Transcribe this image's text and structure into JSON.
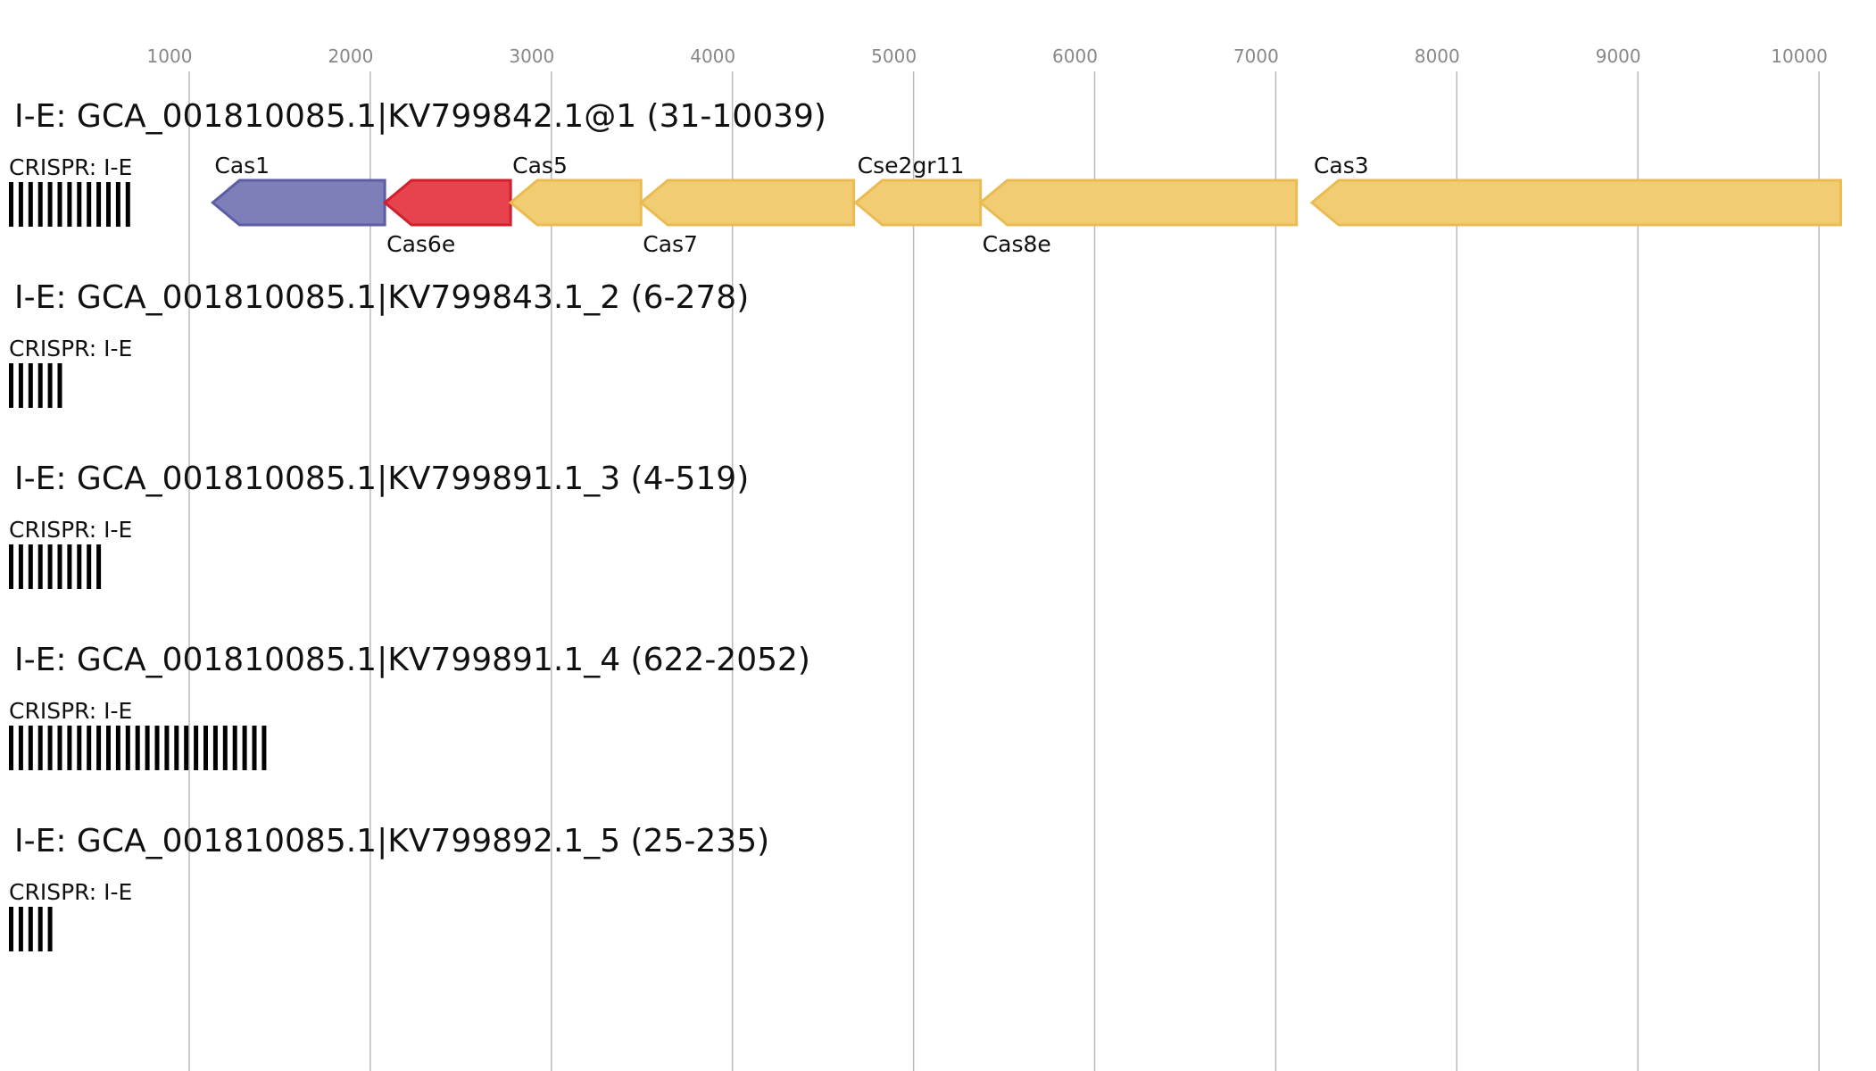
{
  "axis": {
    "ticks": [
      1000,
      2000,
      3000,
      4000,
      5000,
      6000,
      7000,
      8000,
      9000,
      10000
    ],
    "grid_color": "#bbbbbb",
    "tick_color": "#888888"
  },
  "colors": {
    "blue": "#7e7fb8",
    "blue_stroke": "#5b5ea6",
    "red": "#e6434f",
    "red_stroke": "#d11f2b",
    "yellow": "#f2cc72",
    "yellow_stroke": "#eabb52"
  },
  "contigs": [
    {
      "title": "I-E: GCA_001810085.1|KV799842.1@1 (31-10039)",
      "crispr_label": "CRISPR: I-E",
      "crispr_repeats": 13,
      "genes": [
        {
          "name": "Cas1",
          "start": 1130,
          "end": 2080,
          "strand": "-",
          "color": "blue",
          "label_pos": "above"
        },
        {
          "name": "Cas6e",
          "start": 2080,
          "end": 2775,
          "strand": "-",
          "color": "red",
          "label_pos": "below"
        },
        {
          "name": "Cas5",
          "start": 2775,
          "end": 3495,
          "strand": "-",
          "color": "yellow",
          "label_pos": "above"
        },
        {
          "name": "Cas7",
          "start": 3495,
          "end": 4670,
          "strand": "-",
          "color": "yellow",
          "label_pos": "below"
        },
        {
          "name": "Cse2gr11",
          "start": 4680,
          "end": 5370,
          "strand": "-",
          "color": "yellow",
          "label_pos": "above"
        },
        {
          "name": "Cas8e",
          "start": 5370,
          "end": 7115,
          "strand": "-",
          "color": "yellow",
          "label_pos": "below"
        },
        {
          "name": "Cas3",
          "start": 7200,
          "end": 10120,
          "strand": "-",
          "color": "yellow",
          "label_pos": "above"
        }
      ]
    },
    {
      "title": "I-E: GCA_001810085.1|KV799843.1_2 (6-278)",
      "crispr_label": "CRISPR: I-E",
      "crispr_repeats": 6,
      "genes": []
    },
    {
      "title": "I-E: GCA_001810085.1|KV799891.1_3 (4-519)",
      "crispr_label": "CRISPR: I-E",
      "crispr_repeats": 10,
      "genes": []
    },
    {
      "title": "I-E: GCA_001810085.1|KV799891.1_4 (622-2052)",
      "crispr_label": "CRISPR: I-E",
      "crispr_repeats": 27,
      "genes": []
    },
    {
      "title": "I-E: GCA_001810085.1|KV799892.1_5 (25-235)",
      "crispr_label": "CRISPR: I-E",
      "crispr_repeats": 5,
      "genes": []
    }
  ]
}
